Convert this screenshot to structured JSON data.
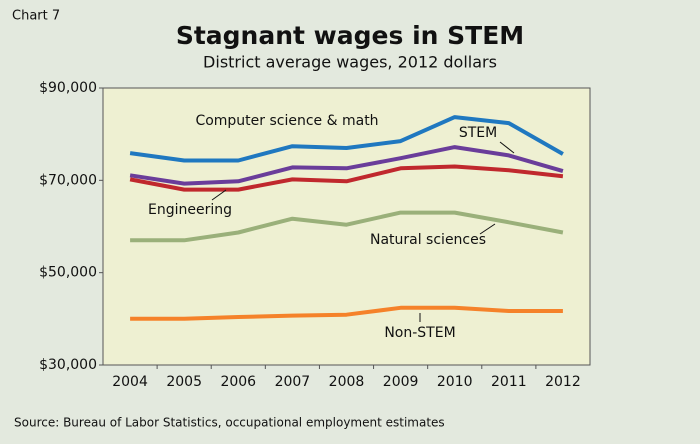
{
  "chart_data": {
    "type": "line",
    "label": "Chart 7",
    "title": "Stagnant wages in STEM",
    "subtitle": "District average wages, 2012 dollars",
    "source": "Source: Bureau of Labor Statistics, occupational employment estimates",
    "categories": [
      "2004",
      "2005",
      "2006",
      "2007",
      "2008",
      "2009",
      "2010",
      "2011",
      "2012"
    ],
    "ylim": [
      30000,
      90000
    ],
    "yticks": [
      {
        "value": 30000,
        "label": "$30,000"
      },
      {
        "value": 50000,
        "label": "$50,000"
      },
      {
        "value": 70000,
        "label": "$70,000"
      },
      {
        "value": 90000,
        "label": "$90,000"
      }
    ],
    "grid": false,
    "series": [
      {
        "name": "Computer science & math",
        "color": "#1f78c0",
        "values": [
          75900,
          74300,
          74300,
          77400,
          77000,
          78500,
          83700,
          82400,
          75700
        ]
      },
      {
        "name": "STEM",
        "color": "#6a3d9a",
        "values": [
          71100,
          69300,
          69800,
          72800,
          72600,
          74800,
          77200,
          75400,
          72000
        ]
      },
      {
        "name": "Engineering",
        "color": "#c0282d",
        "values": [
          70200,
          68000,
          68000,
          70200,
          69800,
          72600,
          73000,
          72200,
          70900
        ]
      },
      {
        "name": "Natural sciences",
        "color": "#9ab07a",
        "values": [
          57000,
          57000,
          58700,
          61700,
          60400,
          63000,
          63000,
          60900,
          58700
        ]
      },
      {
        "name": "Non-STEM",
        "color": "#f5822a",
        "values": [
          40000,
          40000,
          40400,
          40700,
          40900,
          42400,
          42400,
          41700,
          41700
        ]
      }
    ]
  }
}
